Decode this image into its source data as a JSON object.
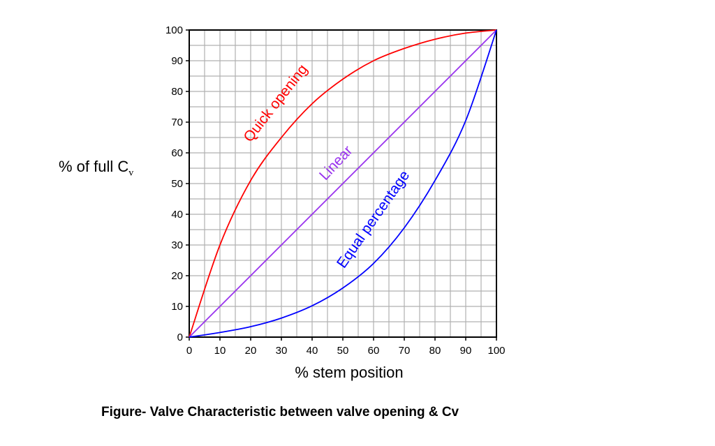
{
  "chart_data": {
    "type": "line",
    "title": "",
    "xlabel": "% stem position",
    "ylabel": "% of full C",
    "ylabel_subscript": "v",
    "xlim": [
      0,
      100
    ],
    "ylim": [
      0,
      100
    ],
    "xticks": [
      0,
      10,
      20,
      30,
      40,
      50,
      60,
      70,
      80,
      90,
      100
    ],
    "yticks": [
      0,
      10,
      20,
      30,
      40,
      50,
      60,
      70,
      80,
      90,
      100
    ],
    "grid": true,
    "minor_grid_step": 5,
    "legend": "none (inline curve labels)",
    "x": [
      0,
      10,
      20,
      30,
      40,
      50,
      60,
      70,
      80,
      90,
      100
    ],
    "series": [
      {
        "name": "Quick opening",
        "color": "#ff0000",
        "values": [
          0,
          30,
          51,
          65,
          76,
          84,
          90,
          94,
          97,
          99,
          100
        ]
      },
      {
        "name": "Linear",
        "color": "#9933ee",
        "values": [
          0,
          10,
          20,
          30,
          40,
          50,
          60,
          70,
          80,
          90,
          100
        ]
      },
      {
        "name": "Equal percentage",
        "color": "#0000ff",
        "values": [
          0,
          1.5,
          3.4,
          6.2,
          10.2,
          16,
          24,
          35.6,
          51,
          70.5,
          100
        ]
      }
    ]
  },
  "caption": "Figure- Valve Characteristic between valve opening & Cv"
}
